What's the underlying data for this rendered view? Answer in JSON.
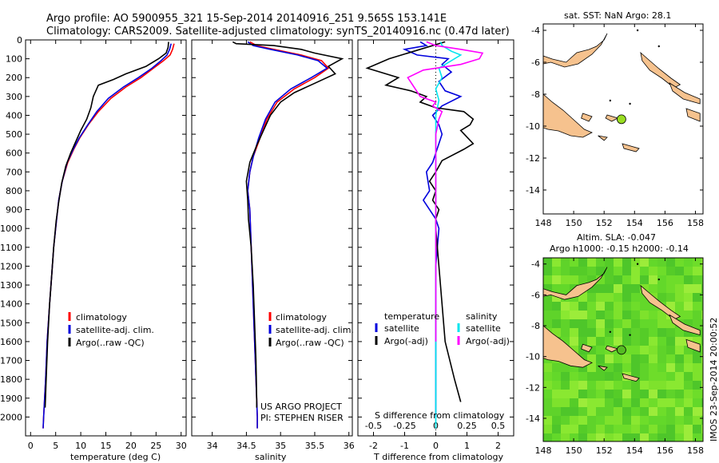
{
  "header": {
    "line1": "Argo profile: AO 5900955_321 15-Sep-2014 20140916_251 9.565S 153.141E",
    "line2": "Climatology: CARS2009. Satellite-adjusted climatology: synTS_20140916.nc (0.47d later)"
  },
  "colors": {
    "climatology": "#ff0000",
    "satellite": "#0000dd",
    "argo": "#000000",
    "satellite_salinity": "#00e5ee",
    "argo_salinity": "#ff00ff",
    "land": "#f6c28e",
    "sla_green": "#66dd22"
  },
  "chart_data": [
    {
      "id": "temperature",
      "type": "line",
      "xlabel": "temperature (deg C)",
      "xlim": [
        -1,
        31
      ],
      "xticks": [
        0,
        5,
        10,
        15,
        20,
        25,
        30
      ],
      "ylim": [
        2100,
        0
      ],
      "yticks": [
        0,
        100,
        200,
        300,
        400,
        500,
        600,
        700,
        800,
        900,
        1000,
        1100,
        1200,
        1300,
        1400,
        1500,
        1600,
        1700,
        1800,
        1900,
        2000
      ],
      "legend": [
        "climatology",
        "satellite-adj. clim.",
        "Argo(..raw -QC)"
      ],
      "series": [
        {
          "name": "climatology",
          "color": "#ff0000",
          "points": [
            [
              28.6,
              20
            ],
            [
              28.3,
              50
            ],
            [
              27.8,
              80
            ],
            [
              26.5,
              110
            ],
            [
              24.5,
              150
            ],
            [
              22,
              200
            ],
            [
              19,
              250
            ],
            [
              16,
              310
            ],
            [
              13.5,
              380
            ],
            [
              11.5,
              450
            ],
            [
              9.8,
              520
            ],
            [
              8.6,
              580
            ],
            [
              7.4,
              650
            ],
            [
              6.3,
              750
            ],
            [
              5.6,
              850
            ],
            [
              5.2,
              950
            ],
            [
              4.6,
              1100
            ],
            [
              4.2,
              1250
            ],
            [
              3.8,
              1400
            ],
            [
              3.3,
              1600
            ],
            [
              3.0,
              1800
            ],
            [
              2.6,
              2000
            ],
            [
              2.5,
              2060
            ]
          ]
        },
        {
          "name": "satellite-adj. clim.",
          "color": "#0000dd",
          "points": [
            [
              28.0,
              20
            ],
            [
              27.7,
              50
            ],
            [
              27.2,
              80
            ],
            [
              26,
              110
            ],
            [
              24.2,
              150
            ],
            [
              21.5,
              200
            ],
            [
              18.5,
              250
            ],
            [
              15.5,
              310
            ],
            [
              13.2,
              380
            ],
            [
              11.4,
              450
            ],
            [
              9.7,
              520
            ],
            [
              8.5,
              580
            ],
            [
              7.3,
              650
            ],
            [
              6.3,
              750
            ],
            [
              5.6,
              850
            ],
            [
              5.2,
              950
            ],
            [
              4.6,
              1100
            ],
            [
              4.2,
              1250
            ],
            [
              3.8,
              1400
            ],
            [
              3.3,
              1600
            ],
            [
              3.0,
              1800
            ],
            [
              2.6,
              2000
            ],
            [
              2.5,
              2060
            ]
          ]
        },
        {
          "name": "Argo(..raw -QC)",
          "color": "#000000",
          "points": [
            [
              27.5,
              10
            ],
            [
              27.4,
              40
            ],
            [
              27,
              70
            ],
            [
              25.5,
              100
            ],
            [
              23,
              140
            ],
            [
              19,
              180
            ],
            [
              16.5,
              210
            ],
            [
              13.5,
              240
            ],
            [
              12.5,
              300
            ],
            [
              12,
              360
            ],
            [
              11.2,
              420
            ],
            [
              10,
              480
            ],
            [
              9,
              540
            ],
            [
              8,
              600
            ],
            [
              7,
              670
            ],
            [
              6.2,
              760
            ],
            [
              5.6,
              860
            ],
            [
              5.1,
              960
            ],
            [
              4.6,
              1100
            ],
            [
              4.2,
              1250
            ],
            [
              3.8,
              1400
            ],
            [
              3.4,
              1600
            ],
            [
              3.1,
              1800
            ],
            [
              2.9,
              1950
            ]
          ]
        }
      ]
    },
    {
      "id": "salinity",
      "type": "line",
      "xlabel": "salinity",
      "xlim": [
        33.7,
        36.05
      ],
      "xticks": [
        34,
        34.5,
        35,
        35.5,
        36
      ],
      "ylim": [
        2100,
        0
      ],
      "legend": [
        "climatology",
        "satellite-adj. clim.",
        "Argo(..raw -QC)"
      ],
      "annotations": [
        "US ARGO PROJECT",
        "PI: STEPHEN RISER"
      ],
      "series": [
        {
          "name": "climatology",
          "color": "#ff0000",
          "points": [
            [
              34.55,
              10
            ],
            [
              34.65,
              30
            ],
            [
              34.9,
              50
            ],
            [
              35.3,
              80
            ],
            [
              35.6,
              110
            ],
            [
              35.7,
              150
            ],
            [
              35.5,
              200
            ],
            [
              35.2,
              260
            ],
            [
              34.95,
              330
            ],
            [
              34.8,
              420
            ],
            [
              34.7,
              520
            ],
            [
              34.6,
              620
            ],
            [
              34.55,
              700
            ],
            [
              34.52,
              800
            ],
            [
              34.55,
              900
            ],
            [
              34.56,
              1000
            ],
            [
              34.58,
              1200
            ],
            [
              34.6,
              1400
            ],
            [
              34.62,
              1600
            ],
            [
              34.64,
              1800
            ],
            [
              34.66,
              2000
            ],
            [
              34.66,
              2060
            ]
          ]
        },
        {
          "name": "satellite-adj. clim.",
          "color": "#0000dd",
          "points": [
            [
              34.52,
              10
            ],
            [
              34.6,
              30
            ],
            [
              34.85,
              50
            ],
            [
              35.25,
              80
            ],
            [
              35.55,
              110
            ],
            [
              35.68,
              150
            ],
            [
              35.45,
              200
            ],
            [
              35.15,
              260
            ],
            [
              34.92,
              330
            ],
            [
              34.78,
              420
            ],
            [
              34.68,
              520
            ],
            [
              34.6,
              620
            ],
            [
              34.55,
              700
            ],
            [
              34.52,
              800
            ],
            [
              34.55,
              900
            ],
            [
              34.56,
              1000
            ],
            [
              34.58,
              1200
            ],
            [
              34.6,
              1400
            ],
            [
              34.62,
              1600
            ],
            [
              34.64,
              1800
            ],
            [
              34.66,
              2000
            ],
            [
              34.66,
              2060
            ]
          ]
        },
        {
          "name": "Argo(..raw -QC)",
          "color": "#000000",
          "points": [
            [
              34.3,
              10
            ],
            [
              34.35,
              20
            ],
            [
              34.9,
              30
            ],
            [
              35.3,
              50
            ],
            [
              35.5,
              70
            ],
            [
              35.9,
              100
            ],
            [
              35.7,
              140
            ],
            [
              35.8,
              180
            ],
            [
              35.5,
              230
            ],
            [
              35.2,
              280
            ],
            [
              35,
              330
            ],
            [
              34.85,
              400
            ],
            [
              34.75,
              480
            ],
            [
              34.65,
              560
            ],
            [
              34.55,
              650
            ],
            [
              34.5,
              750
            ],
            [
              34.52,
              850
            ],
            [
              34.53,
              950
            ],
            [
              34.57,
              1100
            ],
            [
              34.6,
              1300
            ],
            [
              34.62,
              1500
            ],
            [
              34.64,
              1700
            ],
            [
              34.65,
              1900
            ],
            [
              34.65,
              1950
            ]
          ]
        }
      ]
    },
    {
      "id": "difference",
      "type": "line",
      "xlabel": "T difference from climatology",
      "x2label": "S difference from climatology",
      "xlim": [
        -2.5,
        2.5
      ],
      "xticks": [
        -2,
        -1,
        0,
        1,
        2
      ],
      "x2ticks": [
        "-0.5",
        "-0.25",
        "0",
        "0.25",
        "0.5"
      ],
      "ylim": [
        2100,
        0
      ],
      "legend": {
        "temperature": [
          "satellite",
          "Argo(-adj)"
        ],
        "salinity": [
          "satellite",
          "Argo(-adj)"
        ]
      },
      "series": [
        {
          "name": "temperature satellite",
          "color": "#0000dd",
          "points": [
            [
              -0.5,
              10
            ],
            [
              -0.3,
              30
            ],
            [
              -1,
              50
            ],
            [
              -0.6,
              80
            ],
            [
              0.4,
              100
            ],
            [
              0.2,
              130
            ],
            [
              0.5,
              170
            ],
            [
              0.1,
              220
            ],
            [
              0.3,
              270
            ],
            [
              0.8,
              300
            ],
            [
              0.2,
              350
            ],
            [
              -0.1,
              400
            ],
            [
              0.1,
              450
            ],
            [
              0.2,
              500
            ],
            [
              0,
              600
            ],
            [
              -0.1,
              650
            ],
            [
              -0.3,
              700
            ],
            [
              -0.2,
              800
            ],
            [
              -0.4,
              850
            ],
            [
              -0.2,
              900
            ],
            [
              0,
              950
            ],
            [
              0.1,
              1000
            ],
            [
              0,
              1200
            ],
            [
              0,
              1500
            ],
            [
              0,
              2000
            ]
          ]
        },
        {
          "name": "temperature Argo(-adj)",
          "color": "#000000",
          "points": [
            [
              0.3,
              10
            ],
            [
              -0.5,
              50
            ],
            [
              -1.5,
              100
            ],
            [
              -2.2,
              150
            ],
            [
              -1.2,
              200
            ],
            [
              -1.6,
              240
            ],
            [
              -0.8,
              270
            ],
            [
              -0.3,
              300
            ],
            [
              -0.5,
              330
            ],
            [
              0,
              360
            ],
            [
              0.9,
              380
            ],
            [
              1.2,
              420
            ],
            [
              1.1,
              450
            ],
            [
              0.8,
              480
            ],
            [
              1.2,
              550
            ],
            [
              0.9,
              580
            ],
            [
              0.2,
              640
            ],
            [
              0,
              700
            ],
            [
              -0.2,
              750
            ],
            [
              0,
              800
            ],
            [
              -0.1,
              850
            ],
            [
              0.1,
              900
            ],
            [
              0,
              950
            ],
            [
              0,
              1000
            ],
            [
              0.1,
              1200
            ],
            [
              0.3,
              1600
            ],
            [
              0.6,
              1800
            ],
            [
              0.8,
              1920
            ]
          ]
        },
        {
          "name": "salinity satellite",
          "color": "#00e5ee",
          "points": [
            [
              0.15,
              10
            ],
            [
              0.2,
              30
            ],
            [
              0.5,
              60
            ],
            [
              0.8,
              80
            ],
            [
              0.5,
              110
            ],
            [
              0.1,
              150
            ],
            [
              0.2,
              200
            ],
            [
              0,
              260
            ],
            [
              0.1,
              320
            ],
            [
              0,
              400
            ],
            [
              0,
              600
            ],
            [
              0,
              900
            ],
            [
              0,
              1200
            ],
            [
              0,
              1600
            ],
            [
              0,
              2060
            ]
          ]
        },
        {
          "name": "salinity Argo(-adj)",
          "color": "#ff00ff",
          "points": [
            [
              -0.3,
              10
            ],
            [
              0,
              30
            ],
            [
              0.8,
              50
            ],
            [
              1.5,
              70
            ],
            [
              1.4,
              100
            ],
            [
              0.8,
              130
            ],
            [
              -0.4,
              160
            ],
            [
              -0.9,
              200
            ],
            [
              -0.7,
              250
            ],
            [
              -0.5,
              300
            ],
            [
              0,
              330
            ],
            [
              -0.1,
              350
            ],
            [
              0.2,
              380
            ],
            [
              0.1,
              420
            ],
            [
              0,
              500
            ],
            [
              0,
              1600
            ]
          ]
        }
      ]
    },
    {
      "id": "sst_map",
      "type": "map",
      "title": "sat. SST: NaN Argo: 28.1",
      "xlim": [
        148,
        158.5
      ],
      "xticks": [
        148,
        150,
        152,
        154,
        156,
        158
      ],
      "ylim": [
        -15.5,
        -3.6
      ],
      "yticks": [
        -4,
        -6,
        -8,
        -10,
        -12,
        -14
      ],
      "marker": {
        "lon": 153.14,
        "lat": -9.57,
        "color": "#99dd22"
      }
    },
    {
      "id": "sla_map",
      "type": "heatmap",
      "title": "Altim. SLA: -0.047",
      "subtitle": "Argo h1000: -0.15 h2000: -0.14",
      "xlim": [
        148,
        158.5
      ],
      "xticks": [
        148,
        150,
        152,
        154,
        156,
        158
      ],
      "ylim": [
        -15.5,
        -3.6
      ],
      "yticks": [
        -4,
        -6,
        -8,
        -10,
        -12,
        -14
      ],
      "marker": {
        "lon": 153.14,
        "lat": -9.57,
        "color": "#55bb22"
      }
    }
  ],
  "footer": {
    "stamp": "IMOS 23-Sep-2014 20:00:52"
  }
}
